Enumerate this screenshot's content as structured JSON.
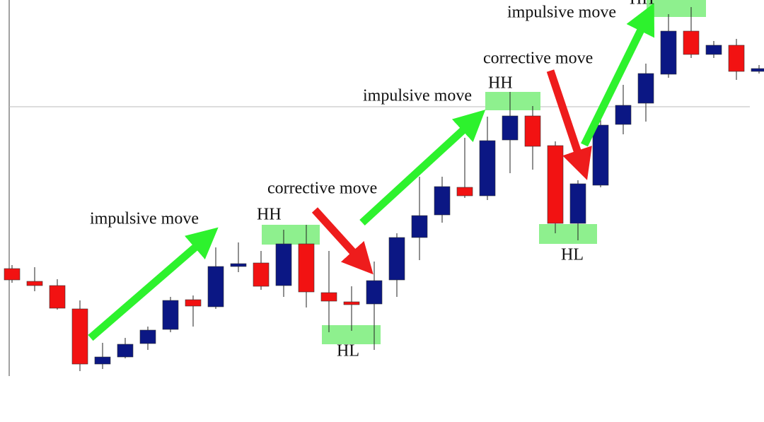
{
  "chart_data": {
    "type": "candlestick",
    "up_color": "#0b1784",
    "down_color": "#f21212",
    "ylim": [
      0,
      532
    ],
    "open": [
      152,
      134,
      128,
      95,
      17,
      27,
      46,
      66,
      108,
      98,
      155,
      160,
      128,
      187,
      118,
      105,
      102,
      136,
      196,
      228,
      267,
      255,
      334,
      368,
      326,
      216,
      270,
      356,
      386,
      427,
      488,
      455,
      468,
      431
    ],
    "close": [
      136,
      128,
      96,
      17,
      27,
      45,
      65,
      107,
      99,
      155,
      159,
      127,
      187,
      119,
      106,
      101,
      135,
      196,
      227,
      268,
      255,
      333,
      368,
      325,
      216,
      272,
      355,
      383,
      428,
      488,
      455,
      468,
      431,
      435
    ],
    "high": [
      157,
      154,
      137,
      107,
      47,
      54,
      70,
      112,
      114,
      182,
      189,
      177,
      207,
      214,
      177,
      127,
      162,
      202,
      282,
      282,
      337,
      367,
      402,
      382,
      332,
      277,
      367,
      412,
      442,
      512,
      522,
      474,
      477,
      440
    ],
    "low": [
      132,
      120,
      94,
      7,
      10,
      25,
      37,
      62,
      70,
      95,
      147,
      122,
      112,
      97,
      62,
      64,
      37,
      112,
      164,
      217,
      252,
      249,
      287,
      292,
      202,
      192,
      267,
      342,
      360,
      422,
      450,
      450,
      419,
      428
    ],
    "annotations": [
      "impulsive move",
      "HH",
      "corrective move",
      "HL",
      "impulsive move",
      "HH",
      "corrective move",
      "HL",
      "impulsive move",
      "HH"
    ]
  }
}
